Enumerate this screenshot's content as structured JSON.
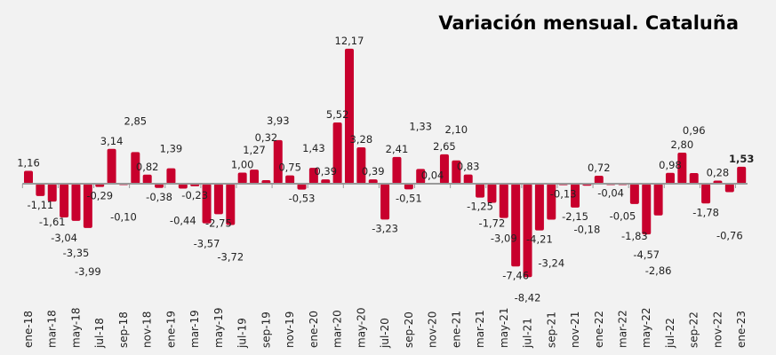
{
  "chart_data": {
    "type": "bar",
    "title": "Variación mensual. Cataluña",
    "x_tick_labels": [
      "ene-18",
      "mar-18",
      "may-18",
      "jul-18",
      "sep-18",
      "nov-18",
      "ene-19",
      "mar-19",
      "may-19",
      "jul-19",
      "sep-19",
      "nov-19",
      "ene-20",
      "mar-20",
      "may-20",
      "jul-20",
      "sep-20",
      "nov-20",
      "ene-21",
      "mar-21",
      "may-21",
      "jul-21",
      "sep-21",
      "nov-21",
      "ene-22",
      "mar-22",
      "may-22",
      "jul-22",
      "sep-22",
      "nov-22",
      "ene-23"
    ],
    "values": [
      1.16,
      -1.11,
      -1.61,
      -3.04,
      -3.35,
      -3.99,
      -0.29,
      3.14,
      -0.1,
      2.85,
      0.82,
      -0.38,
      1.39,
      -0.44,
      -0.23,
      -3.57,
      -2.75,
      -3.72,
      1.0,
      1.27,
      0.32,
      3.93,
      0.75,
      -0.53,
      1.43,
      0.39,
      5.52,
      12.17,
      3.28,
      0.39,
      -3.23,
      2.41,
      -0.51,
      1.33,
      0.04,
      2.65,
      2.1,
      0.83,
      -1.25,
      -1.72,
      -3.09,
      -7.46,
      -8.42,
      -4.21,
      -3.24,
      -0.13,
      -2.15,
      -0.18,
      0.72,
      -0.04,
      -0.05,
      -1.83,
      -4.57,
      -2.86,
      0.98,
      2.8,
      0.96,
      -1.78,
      0.28,
      -0.76,
      1.53
    ],
    "bar_color": "#c8002d",
    "axis_color": "#999999",
    "grid": false,
    "legend": "none"
  }
}
